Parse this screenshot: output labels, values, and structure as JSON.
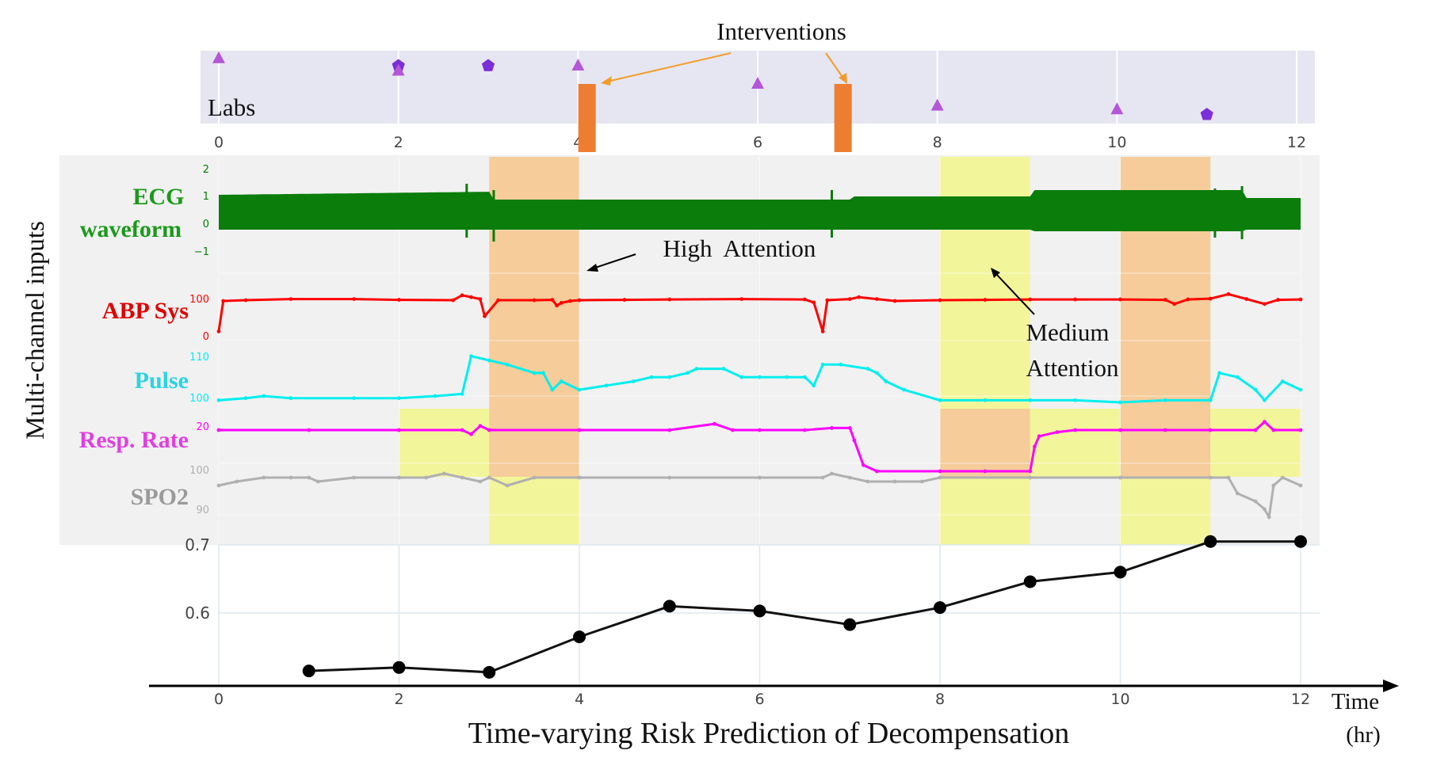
{
  "chart_data": {
    "type": "line",
    "title": "Time-varying Risk Prediction of Decompensation",
    "xlabel": "Time (hr)",
    "xlabel_line1": "Time",
    "xlabel_line2": "(hr)",
    "xlim": [
      0,
      12
    ],
    "xticks": [
      0,
      2,
      4,
      6,
      8,
      10,
      12
    ],
    "left_axis_label": "Multi-channel inputs",
    "labs_panel": {
      "label": "Labs",
      "background": "#e6e6f2",
      "xticks": [
        0,
        2,
        4,
        6,
        8,
        10,
        12
      ],
      "markers": [
        {
          "t": 0,
          "level": 0.85,
          "shape": "triangle"
        },
        {
          "t": 2,
          "level": 0.75,
          "shape": "pentagon"
        },
        {
          "t": 2,
          "level": 0.68,
          "shape": "triangle"
        },
        {
          "t": 3,
          "level": 0.75,
          "shape": "pentagon"
        },
        {
          "t": 4,
          "level": 0.75,
          "shape": "triangle"
        },
        {
          "t": 6,
          "level": 0.5,
          "shape": "triangle"
        },
        {
          "t": 8,
          "level": 0.2,
          "shape": "triangle"
        },
        {
          "t": 10,
          "level": 0.15,
          "shape": "triangle"
        },
        {
          "t": 11,
          "level": 0.08,
          "shape": "pentagon"
        }
      ]
    },
    "interventions": {
      "label": "Interventions",
      "times": [
        4.1,
        6.95
      ],
      "color": "#ed7d31"
    },
    "attention": {
      "high_label": "High  Attention",
      "medium_label_line1": "Medium",
      "medium_label_line2": "Attention",
      "high_color": "#f5cc9a",
      "medium_color": "#f3f59a",
      "bands": [
        {
          "start": 3,
          "end": 4,
          "level": "high",
          "rows": "ecg-abp-pulse"
        },
        {
          "start": 3,
          "end": 4,
          "level": "medium",
          "rows": "spo2"
        },
        {
          "start": 8,
          "end": 9,
          "level": "medium",
          "rows": "ecg-abp-pulse"
        },
        {
          "start": 8,
          "end": 9,
          "level": "high",
          "rows": "resp"
        },
        {
          "start": 8,
          "end": 9,
          "level": "medium",
          "rows": "spo2"
        },
        {
          "start": 10,
          "end": 11,
          "level": "high",
          "rows": "ecg-abp-pulse-resp"
        },
        {
          "start": 10,
          "end": 11,
          "level": "medium",
          "rows": "spo2"
        },
        {
          "start": 2,
          "end": 3,
          "level": "medium",
          "rows": "resp"
        },
        {
          "start": 3,
          "end": 4,
          "level": "high",
          "rows": "resp"
        },
        {
          "start": 9,
          "end": 10,
          "level": "medium",
          "rows": "resp"
        },
        {
          "start": 11,
          "end": 12,
          "level": "medium",
          "rows": "resp"
        }
      ]
    },
    "channels": [
      {
        "name": "ECG",
        "name_line2": "waveform",
        "color": "#008000",
        "label_color": "#1a9a1a",
        "yticks": [
          "2",
          "1",
          "0",
          "−1"
        ]
      },
      {
        "name": "ABP Sys",
        "color": "#ff0000",
        "label_color": "#e00000",
        "yticks": [
          "100",
          "0"
        ],
        "points": [
          [
            0,
            20
          ],
          [
            0.05,
            100
          ],
          [
            0.3,
            102
          ],
          [
            0.8,
            105
          ],
          [
            1.5,
            105
          ],
          [
            2,
            103
          ],
          [
            2.6,
            102
          ],
          [
            2.7,
            115
          ],
          [
            2.8,
            110
          ],
          [
            2.9,
            105
          ],
          [
            2.95,
            60
          ],
          [
            3.1,
            102
          ],
          [
            3.5,
            102
          ],
          [
            3.7,
            103
          ],
          [
            3.75,
            88
          ],
          [
            3.8,
            95
          ],
          [
            3.9,
            100
          ],
          [
            4,
            102
          ],
          [
            4.5,
            103
          ],
          [
            5,
            104
          ],
          [
            5.8,
            105
          ],
          [
            6.5,
            104
          ],
          [
            6.6,
            96
          ],
          [
            6.7,
            20
          ],
          [
            6.75,
            102
          ],
          [
            7,
            105
          ],
          [
            7.1,
            110
          ],
          [
            7.3,
            105
          ],
          [
            7.5,
            100
          ],
          [
            8,
            102
          ],
          [
            8.5,
            103
          ],
          [
            9,
            104
          ],
          [
            9.5,
            104
          ],
          [
            10,
            104
          ],
          [
            10.5,
            103
          ],
          [
            10.6,
            92
          ],
          [
            10.75,
            104
          ],
          [
            11,
            106
          ],
          [
            11.2,
            118
          ],
          [
            11.4,
            105
          ],
          [
            11.6,
            92
          ],
          [
            11.75,
            103
          ],
          [
            12,
            104
          ]
        ]
      },
      {
        "name": "Pulse",
        "color": "#00eeee",
        "label_color": "#2ad4e0",
        "yticks": [
          "110",
          "100"
        ],
        "points": [
          [
            0,
            100.5
          ],
          [
            0.3,
            101
          ],
          [
            0.5,
            101.5
          ],
          [
            0.8,
            101
          ],
          [
            1.5,
            101
          ],
          [
            2,
            101
          ],
          [
            2.4,
            101.5
          ],
          [
            2.7,
            102
          ],
          [
            2.8,
            111
          ],
          [
            3,
            110
          ],
          [
            3.2,
            109
          ],
          [
            3.5,
            107
          ],
          [
            3.6,
            107
          ],
          [
            3.7,
            103
          ],
          [
            3.8,
            105
          ],
          [
            4,
            103
          ],
          [
            4.3,
            104
          ],
          [
            4.6,
            105
          ],
          [
            4.8,
            106
          ],
          [
            5,
            106
          ],
          [
            5.2,
            107
          ],
          [
            5.3,
            108
          ],
          [
            5.6,
            108
          ],
          [
            5.8,
            106
          ],
          [
            6,
            106
          ],
          [
            6.3,
            106
          ],
          [
            6.5,
            106
          ],
          [
            6.6,
            104
          ],
          [
            6.7,
            109
          ],
          [
            6.9,
            109
          ],
          [
            7.2,
            108
          ],
          [
            7.3,
            107
          ],
          [
            7.4,
            105
          ],
          [
            7.6,
            103
          ],
          [
            8,
            100.5
          ],
          [
            8.5,
            100.5
          ],
          [
            9,
            100.5
          ],
          [
            9.5,
            100.5
          ],
          [
            10,
            100
          ],
          [
            10.5,
            100.5
          ],
          [
            11,
            100.5
          ],
          [
            11.1,
            107
          ],
          [
            11.3,
            106
          ],
          [
            11.5,
            103
          ],
          [
            11.6,
            100.5
          ],
          [
            11.8,
            105
          ],
          [
            12,
            103
          ]
        ]
      },
      {
        "name": "Resp. Rate",
        "color": "#ff00ff",
        "label_color": "#e040e0",
        "yticks": [
          "20"
        ],
        "points": [
          [
            0,
            20
          ],
          [
            1,
            20
          ],
          [
            2,
            20
          ],
          [
            2.7,
            20
          ],
          [
            2.8,
            18
          ],
          [
            2.9,
            22
          ],
          [
            3,
            20
          ],
          [
            4,
            20
          ],
          [
            5,
            20
          ],
          [
            5.5,
            23
          ],
          [
            5.7,
            20
          ],
          [
            6,
            20
          ],
          [
            6.5,
            20
          ],
          [
            6.8,
            21
          ],
          [
            7,
            21
          ],
          [
            7.05,
            15
          ],
          [
            7.15,
            3
          ],
          [
            7.3,
            0
          ],
          [
            8,
            0
          ],
          [
            8.5,
            0
          ],
          [
            9,
            0
          ],
          [
            9.05,
            12
          ],
          [
            9.1,
            17
          ],
          [
            9.3,
            19
          ],
          [
            9.5,
            20
          ],
          [
            10,
            20
          ],
          [
            10.5,
            20
          ],
          [
            11,
            20
          ],
          [
            11.5,
            20
          ],
          [
            11.6,
            24
          ],
          [
            11.7,
            20
          ],
          [
            12,
            20
          ]
        ]
      },
      {
        "name": "SPO2",
        "color": "#b0b0b0",
        "label_color": "#9a9a9a",
        "yticks": [
          "100",
          "90"
        ],
        "points": [
          [
            0,
            97
          ],
          [
            0.2,
            98
          ],
          [
            0.5,
            99
          ],
          [
            0.8,
            99
          ],
          [
            1,
            99
          ],
          [
            1.1,
            98
          ],
          [
            1.5,
            99
          ],
          [
            2,
            99
          ],
          [
            2.3,
            99
          ],
          [
            2.5,
            100
          ],
          [
            2.7,
            99
          ],
          [
            2.9,
            98
          ],
          [
            3,
            99
          ],
          [
            3.2,
            97
          ],
          [
            3.5,
            99
          ],
          [
            4,
            99
          ],
          [
            5,
            99
          ],
          [
            6,
            99
          ],
          [
            6.7,
            99
          ],
          [
            6.8,
            100
          ],
          [
            7,
            99
          ],
          [
            7.2,
            98
          ],
          [
            7.5,
            98
          ],
          [
            7.8,
            98
          ],
          [
            8,
            99
          ],
          [
            9,
            99
          ],
          [
            10,
            99
          ],
          [
            11,
            99
          ],
          [
            11.2,
            99
          ],
          [
            11.3,
            95
          ],
          [
            11.5,
            93
          ],
          [
            11.6,
            91
          ],
          [
            11.65,
            89
          ],
          [
            11.7,
            97
          ],
          [
            11.8,
            99
          ],
          [
            12,
            97
          ]
        ]
      }
    ],
    "risk": {
      "yticks": [
        0.6,
        0.7
      ],
      "ylim": [
        0.5,
        0.72
      ],
      "x": [
        1,
        2,
        3,
        4,
        5,
        6,
        7,
        8,
        9,
        10,
        11,
        12
      ],
      "values": [
        0.515,
        0.52,
        0.513,
        0.565,
        0.61,
        0.603,
        0.583,
        0.608,
        0.646,
        0.66,
        0.705,
        0.705
      ],
      "color": "#111111"
    }
  }
}
